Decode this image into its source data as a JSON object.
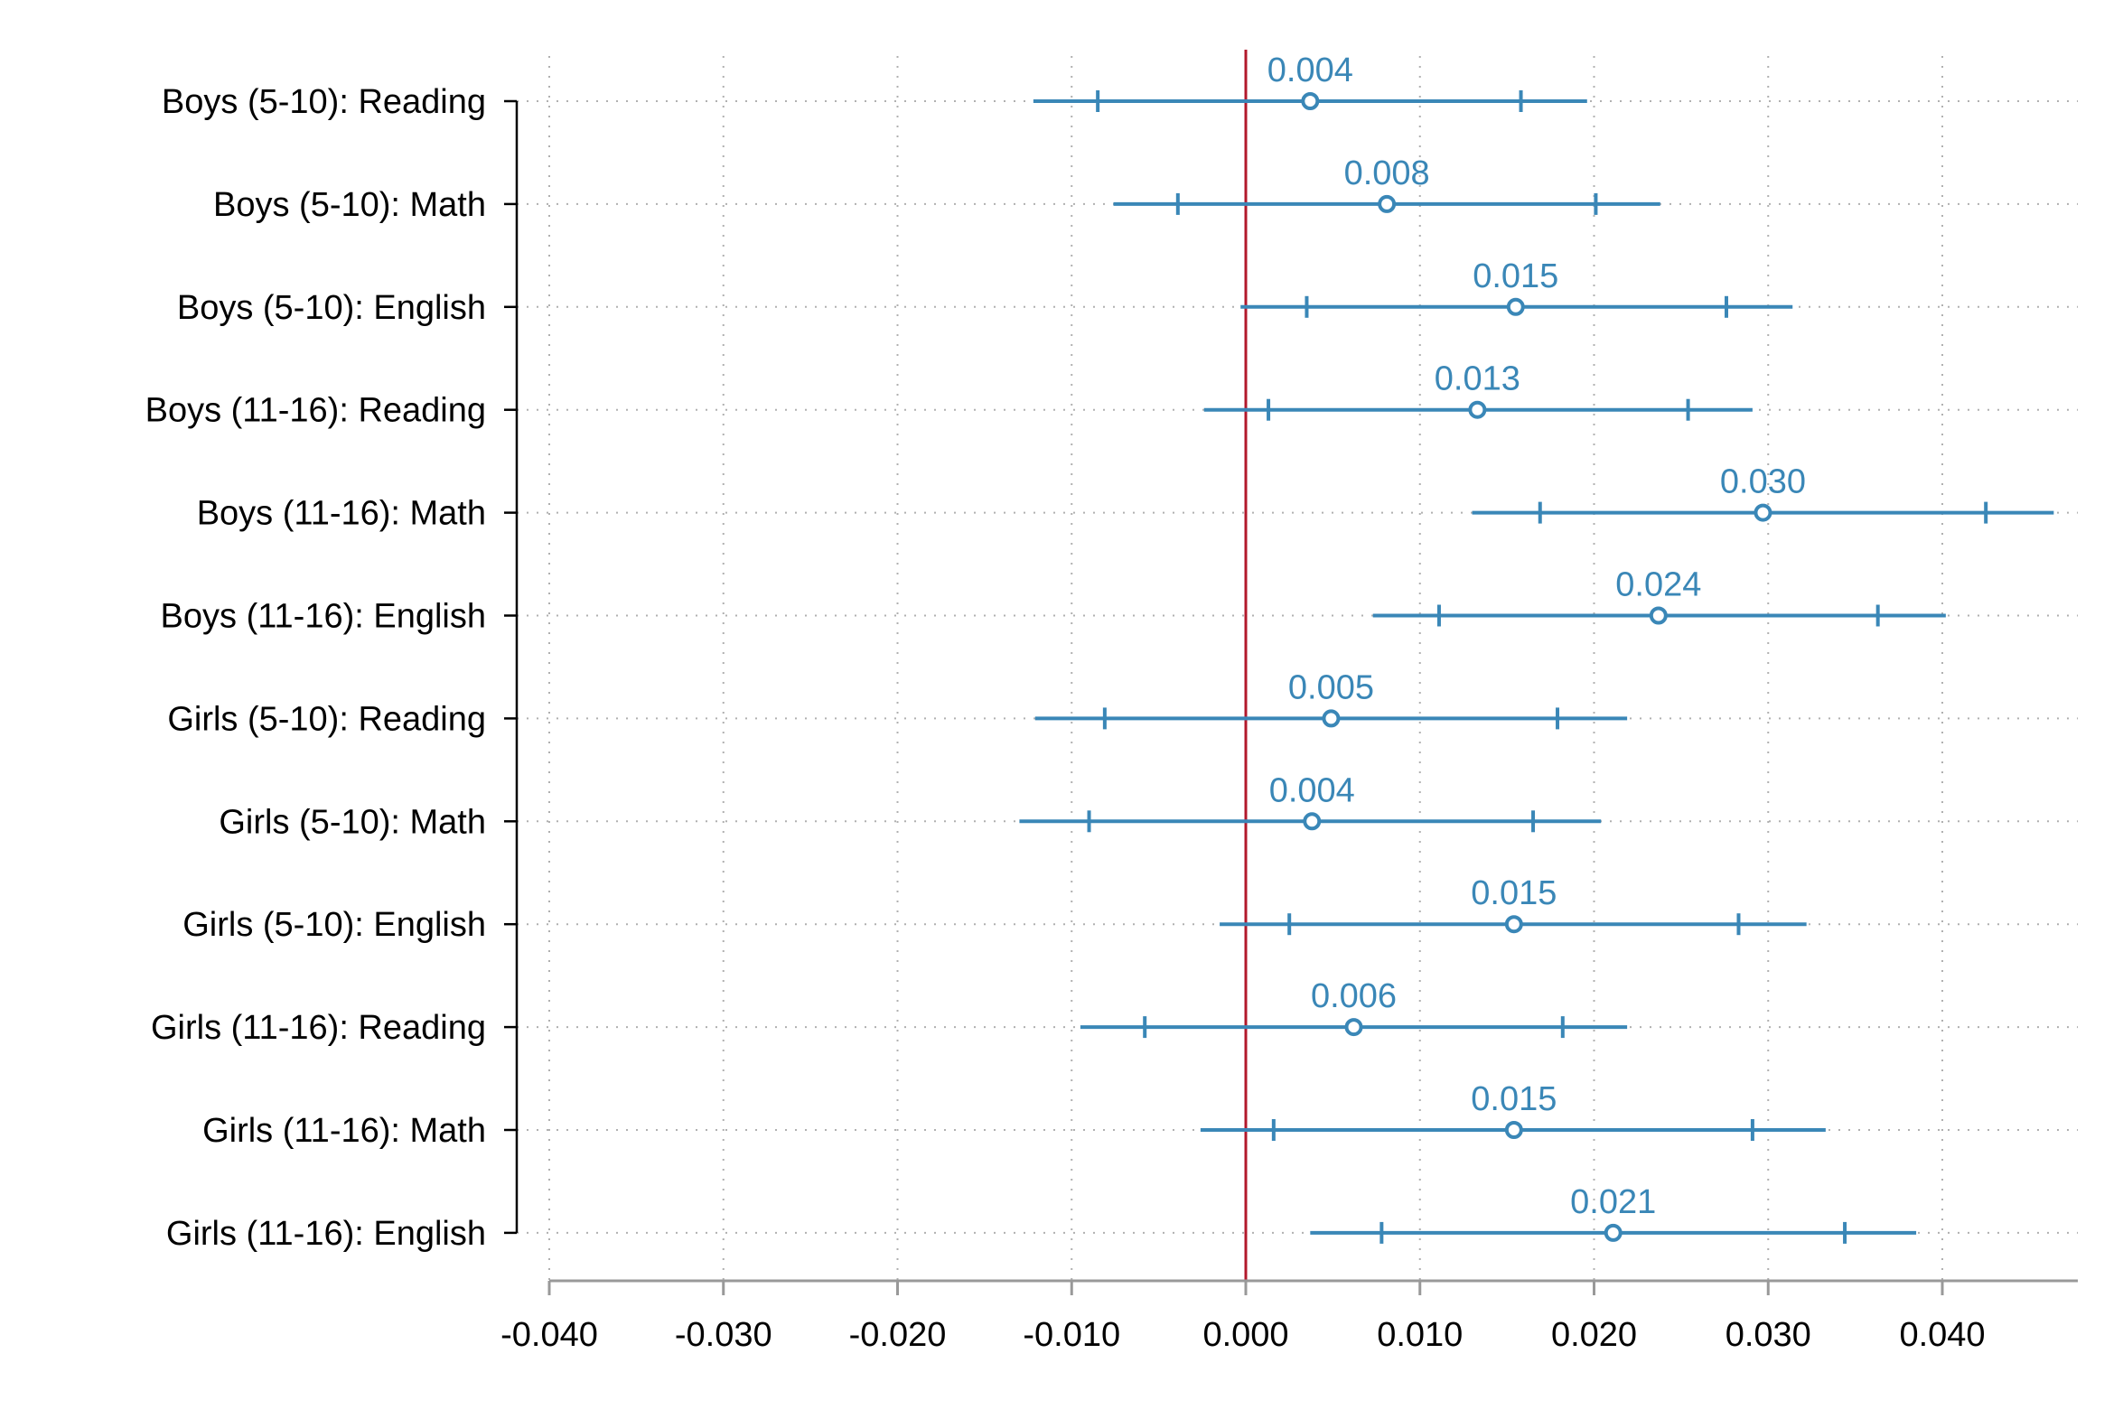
{
  "chart_data": {
    "type": "scatter",
    "orientation": "horizontal",
    "categories": [
      "Boys (5-10): Reading",
      "Boys (5-10): Math",
      "Boys (5-10): English",
      "Boys (11-16): Reading",
      "Boys (11-16): Math",
      "Boys (11-16): English",
      "Girls (5-10): Reading",
      "Girls (5-10): Math",
      "Girls (5-10): English",
      "Girls (11-16): Reading",
      "Girls (11-16): Math",
      "Girls (11-16): English"
    ],
    "estimates": [
      0.0037,
      0.0081,
      0.0155,
      0.0133,
      0.0297,
      0.0237,
      0.0049,
      0.0038,
      0.0154,
      0.0062,
      0.0154,
      0.0211
    ],
    "labels": [
      "0.004",
      "0.008",
      "0.015",
      "0.013",
      "0.030",
      "0.024",
      "0.005",
      "0.004",
      "0.015",
      "0.006",
      "0.015",
      "0.021"
    ],
    "ci_inner": [
      [
        -0.0085,
        0.0158
      ],
      [
        -0.0039,
        0.0201
      ],
      [
        0.0035,
        0.0276
      ],
      [
        0.0013,
        0.0254
      ],
      [
        0.0169,
        0.0425
      ],
      [
        0.0111,
        0.0363
      ],
      [
        -0.0081,
        0.0179
      ],
      [
        -0.009,
        0.0165
      ],
      [
        0.0025,
        0.0283
      ],
      [
        -0.0058,
        0.0182
      ],
      [
        0.0016,
        0.0291
      ],
      [
        0.0078,
        0.0344
      ]
    ],
    "ci_outer": [
      [
        -0.0122,
        0.0196
      ],
      [
        -0.0076,
        0.0238
      ],
      [
        -0.0003,
        0.0314
      ],
      [
        -0.0024,
        0.0291
      ],
      [
        0.013,
        0.0464
      ],
      [
        0.0073,
        0.0402
      ],
      [
        -0.0121,
        0.0219
      ],
      [
        -0.013,
        0.0204
      ],
      [
        -0.0015,
        0.0322
      ],
      [
        -0.0095,
        0.0219
      ],
      [
        -0.0026,
        0.0333
      ],
      [
        0.0037,
        0.0385
      ]
    ],
    "xlim": [
      -0.04,
      0.046
    ],
    "xticks": [
      -0.04,
      -0.03,
      -0.02,
      -0.01,
      0.0,
      0.01,
      0.02,
      0.03,
      0.04
    ],
    "xtick_labels": [
      "-0.040",
      "-0.030",
      "-0.020",
      "-0.010",
      "0.000",
      "0.010",
      "0.020",
      "0.030",
      "0.040"
    ],
    "reference_line": 0.0,
    "grid": true,
    "title": "",
    "xlabel": "",
    "ylabel": "",
    "colors": {
      "series": "#3a87b7",
      "reference": "#b2182b",
      "grid": "#b0b0b0",
      "axis": "#999999",
      "yaxis": "#000000",
      "text": "#000000"
    }
  }
}
